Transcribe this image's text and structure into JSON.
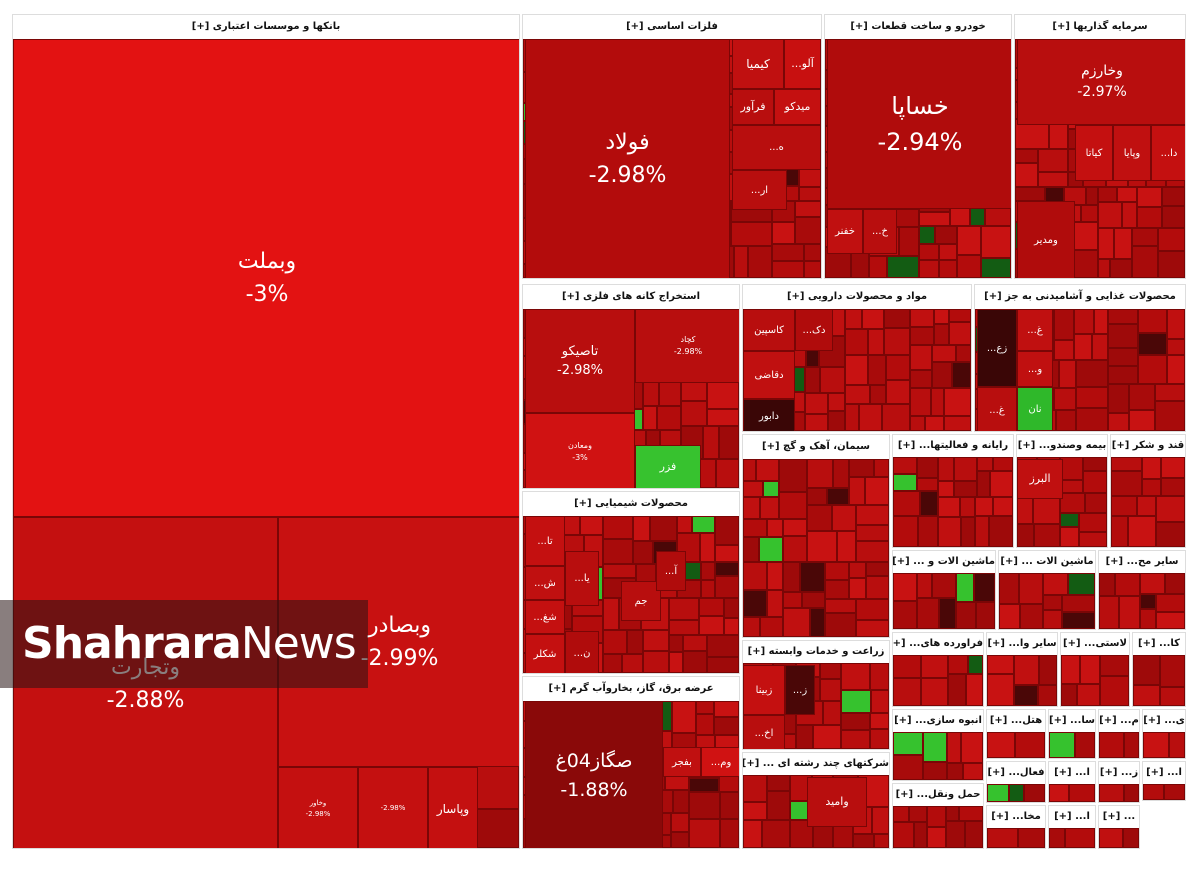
{
  "sectors": [
    {
      "title": "بانکها و موسسات اعتباری [+]",
      "tiles": [
        {
          "name": "وبملت",
          "change": "-3%"
        },
        {
          "name": "وتجارت",
          "change": "-2.88%"
        },
        {
          "name": "وبصادر",
          "change": "-2.99%"
        },
        {
          "name": "وخاور",
          "change": "-2.98%"
        },
        {
          "change": "-2.98%"
        },
        {
          "name": "وپاسار"
        }
      ]
    },
    {
      "title": "فلزات اساسی [+]",
      "tiles": [
        {
          "name": "فولاد",
          "change": "-2.98%"
        },
        {
          "name": "کیمیا"
        },
        {
          "name": "آلو..."
        },
        {
          "name": "فرآور"
        },
        {
          "name": "میدکو"
        },
        {
          "name": "ه..."
        },
        {
          "name": "ار..."
        }
      ]
    },
    {
      "title": "خودرو و ساخت قطعات [+]",
      "tiles": [
        {
          "name": "خساپا",
          "change": "-2.94%"
        },
        {
          "name": "خفنر"
        },
        {
          "name": "خ..."
        }
      ]
    },
    {
      "title": "سرمایه گذاریها [+]",
      "tiles": [
        {
          "name": "وخارزم",
          "change": "-2.97%"
        },
        {
          "name": "دا..."
        },
        {
          "name": "وپایا"
        },
        {
          "name": "کیاتا"
        },
        {
          "name": "ومدیر"
        }
      ]
    },
    {
      "title": "استخراج کانه های فلزی [+]",
      "tiles": [
        {
          "name": "تاصیکو",
          "change": "-2.98%"
        },
        {
          "name": "کچاد",
          "change": "-2.98%"
        },
        {
          "name": "ومعادن",
          "change": "-3%"
        },
        {
          "name": "فزر"
        }
      ]
    },
    {
      "title": "مواد و محصولات دارویی [+]",
      "tiles": [
        {
          "name": "کاسپین"
        },
        {
          "name": "دک..."
        },
        {
          "name": "دقاضی"
        },
        {
          "name": "دابور"
        }
      ]
    },
    {
      "title": "محصولات غذایی و آشامیدنی به جز [+]",
      "tiles": [
        {
          "name": "زع..."
        },
        {
          "name": "غ..."
        },
        {
          "name": "و..."
        },
        {
          "name": "نان"
        },
        {
          "name": "غ..."
        }
      ]
    },
    {
      "title": "محصولات شیمیایی [+]",
      "tiles": [
        {
          "name": "تا..."
        },
        {
          "name": "ش..."
        },
        {
          "name": "یا..."
        },
        {
          "name": "شغ..."
        },
        {
          "name": "ن..."
        },
        {
          "name": "شکلر"
        },
        {
          "name": "جم"
        },
        {
          "name": "آ..."
        }
      ]
    },
    {
      "title": "سیمان، آهک و گچ [+]",
      "tiles": []
    },
    {
      "title": "رایانه و فعالیتها... [+]",
      "tiles": []
    },
    {
      "title": "بیمه وصندو... [+]",
      "tiles": [
        {
          "name": "البرز"
        }
      ]
    },
    {
      "title": "قند و شکر [+]",
      "tiles": []
    },
    {
      "title": "عرضه برق، گاز، بخاروآب گرم [+]",
      "tiles": [
        {
          "name": "صگاز04غ",
          "change": "-1.88%"
        },
        {
          "name": "وم..."
        },
        {
          "name": "بفجر"
        }
      ]
    },
    {
      "title": "زراعت و خدمات وابسته [+]",
      "tiles": [
        {
          "name": "زبینا"
        },
        {
          "name": "ز..."
        },
        {
          "name": "اخ..."
        }
      ]
    },
    {
      "title": "شرکتهای چند رشته ای ... [+]",
      "tiles": [
        {
          "name": "وامید"
        }
      ]
    },
    {
      "title": "ماشین الات و ... [+]",
      "tiles": []
    },
    {
      "title": "ماشین الات ... [+]",
      "tiles": []
    },
    {
      "title": "سایر مح... [+]",
      "tiles": []
    },
    {
      "title": "فراورده های... [+]",
      "tiles": []
    },
    {
      "title": "سایر وا... [+]",
      "tiles": []
    },
    {
      "title": "لاستی... [+]",
      "tiles": []
    },
    {
      "title": "کا... [+]",
      "tiles": []
    },
    {
      "title": "انبوه سازی... [+]",
      "tiles": []
    },
    {
      "title": "هتل... [+]",
      "tiles": []
    },
    {
      "title": "سا... [+]",
      "tiles": []
    },
    {
      "title": "م... [+]",
      "tiles": []
    },
    {
      "title": "ی... [+]",
      "tiles": []
    },
    {
      "title": "فعال... [+]",
      "tiles": []
    },
    {
      "title": "حمل ونقل... [+]",
      "tiles": []
    },
    {
      "title": "ا... [+]",
      "tiles": []
    },
    {
      "title": "ز... [+]",
      "tiles": []
    },
    {
      "title": "ا... [+]",
      "tiles": []
    },
    {
      "title": "مخا... [+]",
      "tiles": []
    },
    {
      "title": "ا... [+]",
      "tiles": []
    },
    {
      "title": "... [+]",
      "tiles": []
    }
  ],
  "watermark": {
    "bold": "Shahrara",
    "light": "News"
  }
}
